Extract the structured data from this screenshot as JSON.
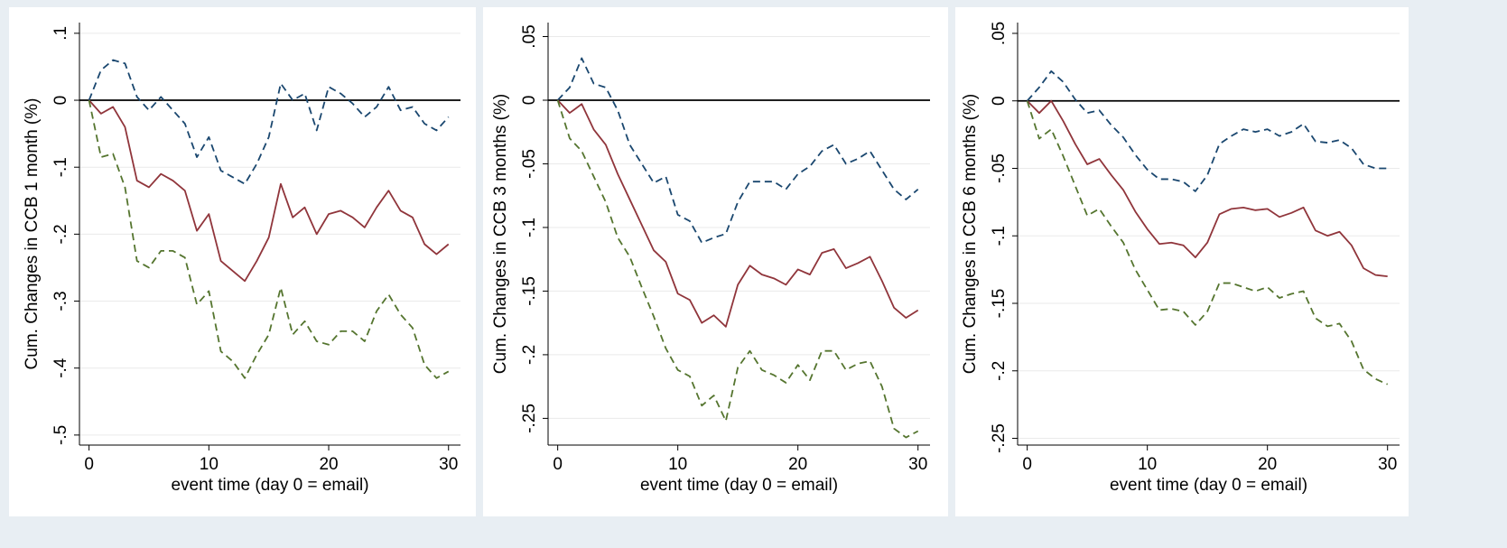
{
  "chart_data": [
    {
      "type": "line",
      "ylabel": "Cum. Changes in CCB 1 month (%)",
      "xlabel": "event time (day 0 = email)",
      "x": [
        0,
        1,
        2,
        3,
        4,
        5,
        6,
        7,
        8,
        9,
        10,
        11,
        12,
        13,
        14,
        15,
        16,
        17,
        18,
        19,
        20,
        21,
        22,
        23,
        24,
        25,
        26,
        27,
        28,
        29,
        30
      ],
      "xlim": [
        -0.8,
        31
      ],
      "xticks": [
        0,
        10,
        20,
        30
      ],
      "ylim": [
        -0.515,
        0.116
      ],
      "yticks": [
        {
          "value": -0.5,
          "label": "-.5"
        },
        {
          "value": -0.4,
          "label": "-.4"
        },
        {
          "value": -0.3,
          "label": "-.3"
        },
        {
          "value": -0.2,
          "label": "-.2"
        },
        {
          "value": -0.1,
          "label": "-.1"
        },
        0,
        {
          "value": 0.1,
          "label": ".1"
        }
      ],
      "grid": true,
      "hline": 0,
      "series": [
        {
          "color": "#1a476f",
          "line_style": "dashed",
          "values": [
            0,
            0.045,
            0.06,
            0.055,
            0.005,
            -0.015,
            0.005,
            -0.015,
            -0.035,
            -0.085,
            -0.055,
            -0.105,
            -0.115,
            -0.125,
            -0.095,
            -0.055,
            0.025,
            0,
            0.01,
            -0.045,
            0.02,
            0.01,
            -0.005,
            -0.025,
            -0.01,
            0.02,
            -0.015,
            -0.01,
            -0.035,
            -0.045,
            -0.025
          ]
        },
        {
          "color": "#90353b",
          "line_style": "solid",
          "values": [
            0,
            -0.02,
            -0.01,
            -0.04,
            -0.12,
            -0.13,
            -0.11,
            -0.12,
            -0.135,
            -0.195,
            -0.17,
            -0.24,
            -0.255,
            -0.27,
            -0.24,
            -0.205,
            -0.125,
            -0.175,
            -0.16,
            -0.2,
            -0.17,
            -0.165,
            -0.175,
            -0.19,
            -0.16,
            -0.135,
            -0.165,
            -0.175,
            -0.215,
            -0.23,
            -0.215
          ]
        },
        {
          "color": "#55752f",
          "line_style": "dashed",
          "values": [
            0,
            -0.085,
            -0.08,
            -0.13,
            -0.24,
            -0.25,
            -0.225,
            -0.225,
            -0.235,
            -0.305,
            -0.285,
            -0.375,
            -0.39,
            -0.415,
            -0.38,
            -0.35,
            -0.28,
            -0.35,
            -0.33,
            -0.36,
            -0.365,
            -0.345,
            -0.345,
            -0.36,
            -0.315,
            -0.29,
            -0.32,
            -0.34,
            -0.395,
            -0.415,
            -0.405
          ]
        }
      ]
    },
    {
      "type": "line",
      "ylabel": "Cum. Changes in CCB 3 months (%)",
      "xlabel": "event time (day 0 = email)",
      "x": [
        0,
        1,
        2,
        3,
        4,
        5,
        6,
        7,
        8,
        9,
        10,
        11,
        12,
        13,
        14,
        15,
        16,
        17,
        18,
        19,
        20,
        21,
        22,
        23,
        24,
        25,
        26,
        27,
        28,
        29,
        30
      ],
      "xlim": [
        -0.8,
        31
      ],
      "xticks": [
        0,
        10,
        20,
        30
      ],
      "ylim": [
        -0.271,
        0.061
      ],
      "yticks": [
        {
          "value": -0.25,
          "label": "-.25"
        },
        {
          "value": -0.2,
          "label": "-.2"
        },
        {
          "value": -0.15,
          "label": "-.15"
        },
        {
          "value": -0.1,
          "label": "-.1"
        },
        {
          "value": -0.05,
          "label": "-.05"
        },
        0,
        {
          "value": 0.05,
          "label": ".05"
        }
      ],
      "grid": true,
      "hline": 0,
      "series": [
        {
          "color": "#1a476f",
          "line_style": "dashed",
          "values": [
            0,
            0.01,
            0.033,
            0.013,
            0.01,
            -0.008,
            -0.035,
            -0.05,
            -0.065,
            -0.06,
            -0.09,
            -0.095,
            -0.112,
            -0.108,
            -0.105,
            -0.08,
            -0.064,
            -0.064,
            -0.064,
            -0.07,
            -0.058,
            -0.052,
            -0.04,
            -0.035,
            -0.05,
            -0.046,
            -0.04,
            -0.055,
            -0.07,
            -0.078,
            -0.07
          ]
        },
        {
          "color": "#90353b",
          "line_style": "solid",
          "values": [
            0,
            -0.01,
            -0.003,
            -0.023,
            -0.035,
            -0.058,
            -0.078,
            -0.098,
            -0.118,
            -0.127,
            -0.152,
            -0.157,
            -0.175,
            -0.169,
            -0.178,
            -0.145,
            -0.13,
            -0.137,
            -0.14,
            -0.145,
            -0.133,
            -0.137,
            -0.12,
            -0.117,
            -0.132,
            -0.128,
            -0.123,
            -0.142,
            -0.163,
            -0.171,
            -0.165
          ]
        },
        {
          "color": "#55752f",
          "line_style": "dashed",
          "values": [
            0,
            -0.03,
            -0.04,
            -0.06,
            -0.08,
            -0.108,
            -0.123,
            -0.147,
            -0.17,
            -0.195,
            -0.212,
            -0.217,
            -0.24,
            -0.232,
            -0.252,
            -0.21,
            -0.197,
            -0.212,
            -0.216,
            -0.222,
            -0.208,
            -0.22,
            -0.197,
            -0.197,
            -0.212,
            -0.207,
            -0.205,
            -0.225,
            -0.258,
            -0.265,
            -0.26
          ]
        }
      ]
    },
    {
      "type": "line",
      "ylabel": "Cum. Changes in CCB 6 months (%)",
      "xlabel": "event time (day 0 = email)",
      "x": [
        0,
        1,
        2,
        3,
        4,
        5,
        6,
        7,
        8,
        9,
        10,
        11,
        12,
        13,
        14,
        15,
        16,
        17,
        18,
        19,
        20,
        21,
        22,
        23,
        24,
        25,
        26,
        27,
        28,
        29,
        30
      ],
      "xlim": [
        -0.8,
        31
      ],
      "xticks": [
        0,
        10,
        20,
        30
      ],
      "ylim": [
        -0.255,
        0.058
      ],
      "yticks": [
        {
          "value": -0.25,
          "label": "-.25"
        },
        {
          "value": -0.2,
          "label": "-.2"
        },
        {
          "value": -0.15,
          "label": "-.15"
        },
        {
          "value": -0.1,
          "label": "-.1"
        },
        {
          "value": -0.05,
          "label": "-.05"
        },
        0,
        {
          "value": 0.05,
          "label": ".05"
        }
      ],
      "grid": true,
      "hline": 0,
      "series": [
        {
          "color": "#1a476f",
          "line_style": "dashed",
          "values": [
            0,
            0.01,
            0.022,
            0.014,
            0.001,
            -0.009,
            -0.007,
            -0.018,
            -0.027,
            -0.04,
            -0.051,
            -0.058,
            -0.058,
            -0.06,
            -0.067,
            -0.055,
            -0.032,
            -0.026,
            -0.021,
            -0.023,
            -0.021,
            -0.026,
            -0.023,
            -0.017,
            -0.03,
            -0.031,
            -0.029,
            -0.035,
            -0.047,
            -0.05,
            -0.05
          ]
        },
        {
          "color": "#90353b",
          "line_style": "solid",
          "values": [
            0,
            -0.009,
            0,
            -0.015,
            -0.032,
            -0.047,
            -0.043,
            -0.055,
            -0.066,
            -0.082,
            -0.095,
            -0.106,
            -0.105,
            -0.107,
            -0.116,
            -0.105,
            -0.084,
            -0.08,
            -0.079,
            -0.081,
            -0.08,
            -0.086,
            -0.083,
            -0.079,
            -0.096,
            -0.1,
            -0.097,
            -0.107,
            -0.124,
            -0.129,
            -0.13
          ]
        },
        {
          "color": "#55752f",
          "line_style": "dashed",
          "values": [
            0,
            -0.028,
            -0.021,
            -0.041,
            -0.063,
            -0.085,
            -0.08,
            -0.093,
            -0.105,
            -0.125,
            -0.14,
            -0.155,
            -0.154,
            -0.156,
            -0.166,
            -0.156,
            -0.135,
            -0.135,
            -0.138,
            -0.141,
            -0.138,
            -0.146,
            -0.143,
            -0.141,
            -0.161,
            -0.167,
            -0.165,
            -0.178,
            -0.199,
            -0.206,
            -0.21
          ]
        }
      ]
    }
  ]
}
